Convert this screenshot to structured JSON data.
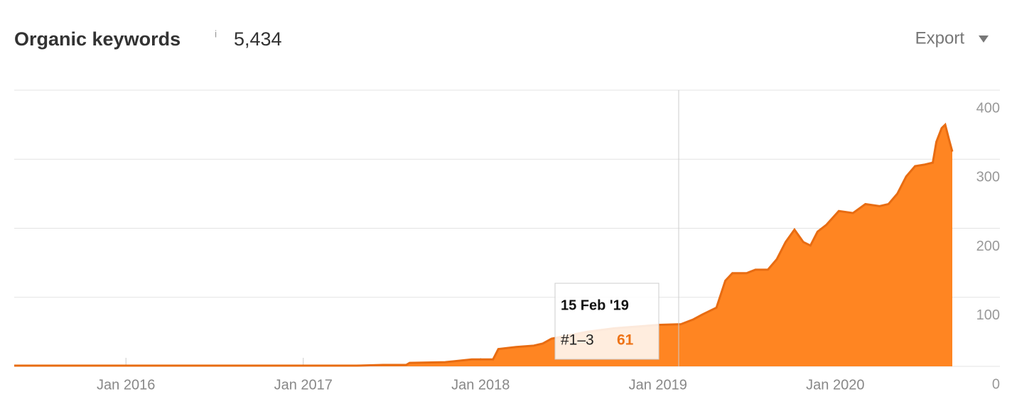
{
  "header": {
    "title": "Organic keywords",
    "info": "i",
    "total": "5,434",
    "export": "Export"
  },
  "chart_data": {
    "type": "area",
    "x": [
      2015.37,
      2017.3,
      2017.45,
      2017.58,
      2017.6,
      2017.8,
      2017.95,
      2018.07,
      2018.1,
      2018.2,
      2018.3,
      2018.35,
      2018.4,
      2018.5,
      2018.6,
      2018.75,
      2018.9,
      2019.0,
      2019.13,
      2019.2,
      2019.25,
      2019.33,
      2019.38,
      2019.42,
      2019.5,
      2019.55,
      2019.62,
      2019.67,
      2019.72,
      2019.77,
      2019.82,
      2019.86,
      2019.9,
      2019.95,
      2020.02,
      2020.1,
      2020.17,
      2020.25,
      2020.3,
      2020.35,
      2020.4,
      2020.45,
      2020.5,
      2020.55,
      2020.57,
      2020.6,
      2020.62,
      2020.64,
      2020.66
    ],
    "series": [
      {
        "name": "#1–3",
        "color": "#ff8522",
        "values": [
          1,
          1,
          2,
          2,
          5,
          6,
          10,
          10,
          25,
          28,
          30,
          33,
          40,
          45,
          50,
          55,
          58,
          60,
          61,
          68,
          75,
          85,
          124,
          135,
          135,
          140,
          140,
          155,
          180,
          198,
          180,
          175,
          195,
          205,
          225,
          222,
          235,
          232,
          235,
          250,
          275,
          290,
          292,
          295,
          325,
          345,
          350,
          330,
          311
        ]
      }
    ],
    "xlim": [
      2015.37,
      2020.66
    ],
    "xticks": [
      {
        "value": 2016,
        "label": "Jan 2016"
      },
      {
        "value": 2017,
        "label": "Jan 2017"
      },
      {
        "value": 2018,
        "label": "Jan 2018"
      },
      {
        "value": 2019,
        "label": "Jan 2019"
      },
      {
        "value": 2020,
        "label": "Jan 2020"
      }
    ],
    "ylim": [
      0,
      400
    ],
    "yticks": [
      0,
      100,
      200,
      300,
      400
    ],
    "grid": true,
    "line_color": "#e86c12",
    "tooltip": {
      "date": "15 Feb '19",
      "series": "#1–3",
      "value": 61
    }
  }
}
